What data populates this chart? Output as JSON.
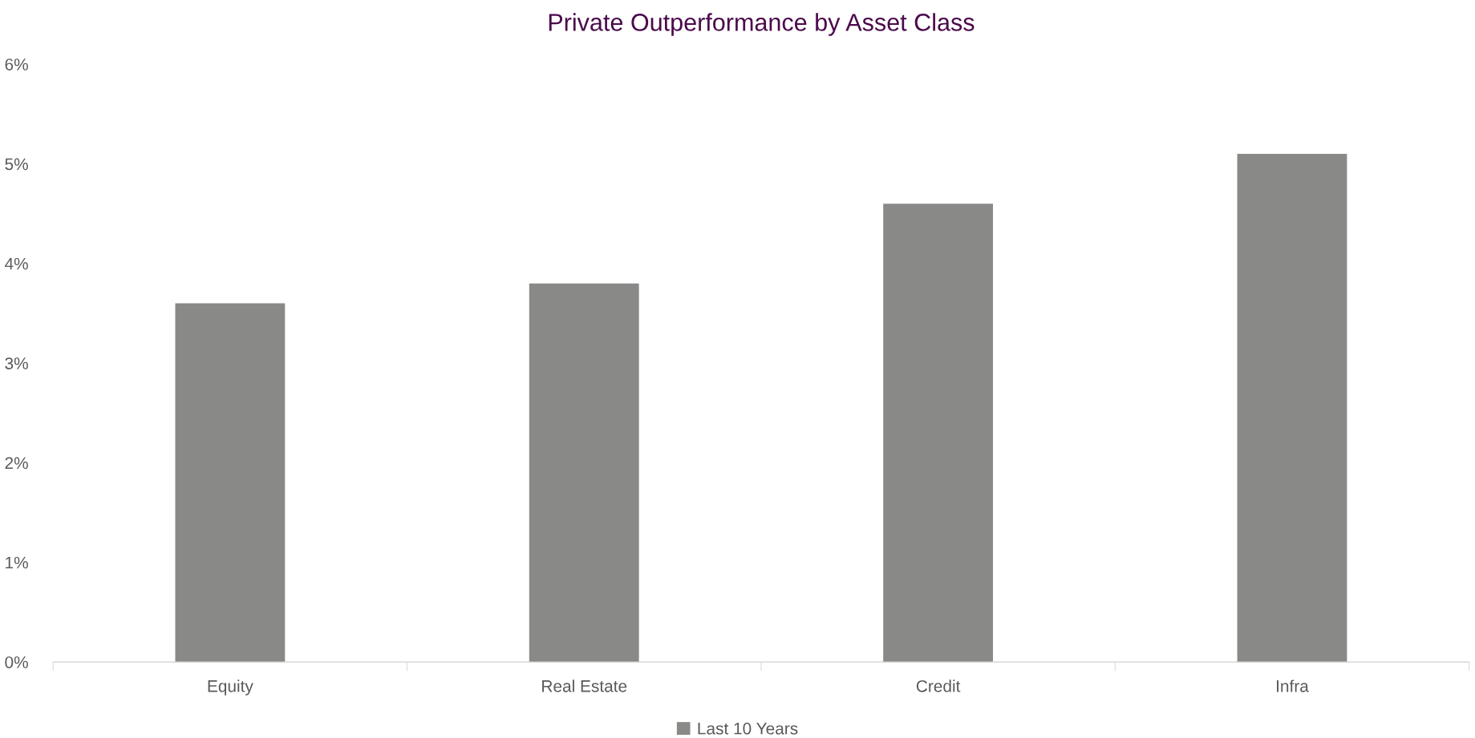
{
  "chart_data": {
    "type": "bar",
    "title": "Private Outperformance by Asset Class",
    "categories": [
      "Equity",
      "Real Estate",
      "Credit",
      "Infra"
    ],
    "series": [
      {
        "name": "Last 10 Years",
        "color": "#898987",
        "values": [
          3.6,
          3.8,
          4.6,
          5.1
        ]
      }
    ],
    "ylim": [
      0,
      6
    ],
    "yticks": [
      {
        "value": 0,
        "label": "0%"
      },
      {
        "value": 1,
        "label": "1%"
      },
      {
        "value": 2,
        "label": "2%"
      },
      {
        "value": 3,
        "label": "3%"
      },
      {
        "value": 4,
        "label": "4%"
      },
      {
        "value": 5,
        "label": "5%"
      },
      {
        "value": 6,
        "label": "6%"
      }
    ],
    "grid": false,
    "legend": "bottom"
  }
}
